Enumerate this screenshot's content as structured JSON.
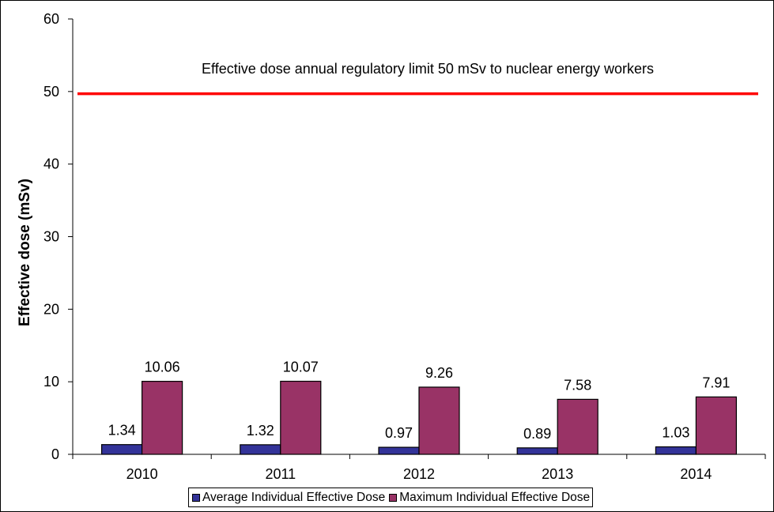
{
  "chart_data": {
    "type": "bar",
    "categories": [
      "2010",
      "2011",
      "2012",
      "2013",
      "2014"
    ],
    "series": [
      {
        "name": "Average Individual Effective Dose",
        "values": [
          1.34,
          1.32,
          0.97,
          0.89,
          1.03
        ],
        "labels": [
          "1.34",
          "1.32",
          "0.97",
          "0.89",
          "1.03"
        ],
        "color": "#333399"
      },
      {
        "name": "Maximum Individual Effective Dose",
        "values": [
          10.06,
          10.07,
          9.26,
          7.58,
          7.91
        ],
        "labels": [
          "10.06",
          "10.07",
          "9.26",
          "7.58",
          "7.91"
        ],
        "color": "#993366"
      }
    ],
    "ylabel": "Effective dose (mSv)",
    "xlabel": "",
    "ylim": [
      0,
      60
    ],
    "yticks": [
      0,
      10,
      20,
      30,
      40,
      50,
      60
    ],
    "ytick_labels": [
      "0",
      "10",
      "20",
      "30",
      "40",
      "50",
      "60"
    ],
    "grid": false,
    "legend_position": "bottom",
    "reference_line": {
      "value": 49.7,
      "label": "Effective dose annual regulatory limit 50 mSv to nuclear energy workers",
      "color": "#ff0000"
    }
  }
}
